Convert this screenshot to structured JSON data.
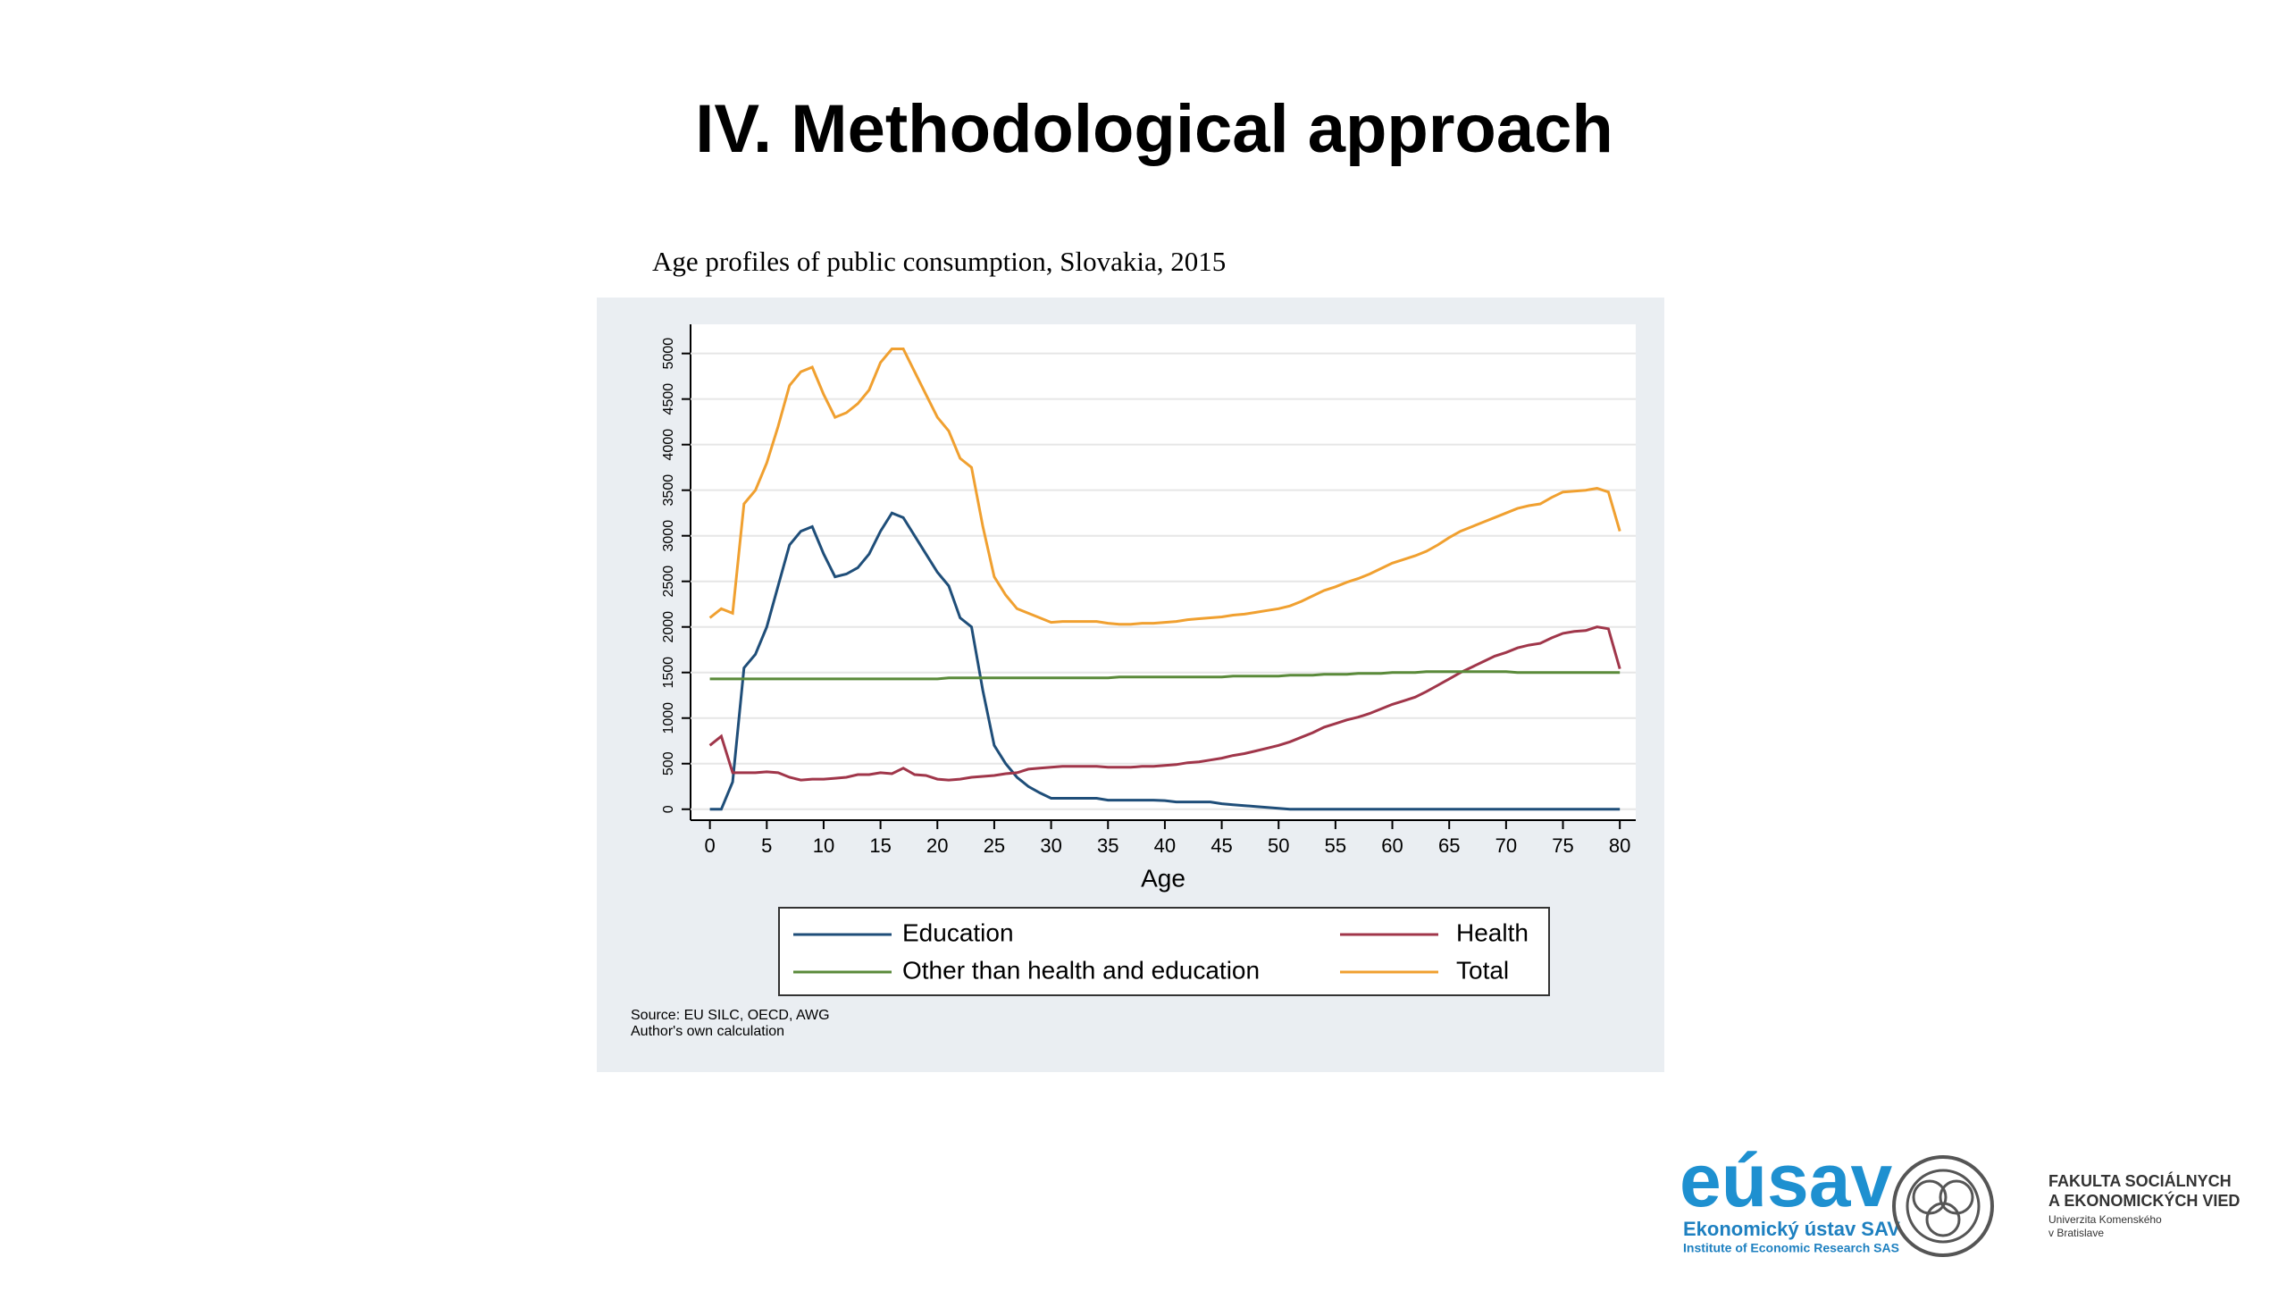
{
  "header": {
    "title": "IV. Methodological approach"
  },
  "chart_data": {
    "type": "line",
    "title": "Age profiles of public consumption, Slovakia, 2015",
    "x_label": "Age",
    "x": [
      0,
      1,
      2,
      3,
      4,
      5,
      6,
      7,
      8,
      9,
      10,
      11,
      12,
      13,
      14,
      15,
      16,
      17,
      18,
      19,
      20,
      21,
      22,
      23,
      24,
      25,
      26,
      27,
      28,
      29,
      30,
      31,
      32,
      33,
      34,
      35,
      36,
      37,
      38,
      39,
      40,
      41,
      42,
      43,
      44,
      45,
      46,
      47,
      48,
      49,
      50,
      51,
      52,
      53,
      54,
      55,
      56,
      57,
      58,
      59,
      60,
      61,
      62,
      63,
      64,
      65,
      66,
      67,
      68,
      69,
      70,
      71,
      72,
      73,
      74,
      75,
      76,
      77,
      78,
      79,
      80
    ],
    "xlim": [
      -1.7,
      81.4
    ],
    "xticks": [
      0,
      5,
      10,
      15,
      20,
      25,
      30,
      35,
      40,
      45,
      50,
      55,
      60,
      65,
      70,
      75,
      80
    ],
    "ylim": [
      -120,
      5320
    ],
    "yticks": [
      0,
      500,
      1000,
      1500,
      2000,
      2500,
      3000,
      3500,
      4000,
      4500,
      5000
    ],
    "grid": true,
    "series": [
      {
        "name": "Education",
        "color": "#1f4e79",
        "values": [
          0,
          0,
          300,
          1550,
          1700,
          2000,
          2450,
          2900,
          3050,
          3100,
          2800,
          2550,
          2580,
          2650,
          2800,
          3050,
          3250,
          3200,
          3000,
          2800,
          2600,
          2450,
          2100,
          2000,
          1300,
          700,
          500,
          350,
          250,
          180,
          120,
          120,
          120,
          120,
          120,
          100,
          100,
          100,
          100,
          100,
          95,
          80,
          80,
          80,
          80,
          60,
          50,
          40,
          30,
          20,
          10,
          0,
          0,
          0,
          0,
          0,
          0,
          0,
          0,
          0,
          0,
          0,
          0,
          0,
          0,
          0,
          0,
          0,
          0,
          0,
          0,
          0,
          0,
          0,
          0,
          0,
          0,
          0,
          0,
          0,
          0
        ]
      },
      {
        "name": "Health",
        "color": "#a0364a",
        "values": [
          700,
          800,
          400,
          400,
          400,
          410,
          400,
          350,
          320,
          330,
          330,
          340,
          350,
          380,
          380,
          400,
          390,
          450,
          380,
          370,
          330,
          320,
          330,
          350,
          360,
          370,
          390,
          400,
          440,
          450,
          460,
          470,
          470,
          470,
          470,
          460,
          460,
          460,
          470,
          470,
          480,
          490,
          510,
          520,
          540,
          560,
          590,
          610,
          640,
          670,
          700,
          740,
          790,
          840,
          900,
          940,
          980,
          1010,
          1050,
          1100,
          1150,
          1190,
          1230,
          1290,
          1360,
          1430,
          1500,
          1560,
          1620,
          1680,
          1720,
          1770,
          1800,
          1820,
          1880,
          1930,
          1950,
          1960,
          2000,
          1980,
          1540
        ]
      },
      {
        "name": "Other than health and education",
        "color": "#5a8a3a",
        "values": [
          1430,
          1430,
          1430,
          1430,
          1430,
          1430,
          1430,
          1430,
          1430,
          1430,
          1430,
          1430,
          1430,
          1430,
          1430,
          1430,
          1430,
          1430,
          1430,
          1430,
          1430,
          1440,
          1440,
          1440,
          1440,
          1440,
          1440,
          1440,
          1440,
          1440,
          1440,
          1440,
          1440,
          1440,
          1440,
          1440,
          1450,
          1450,
          1450,
          1450,
          1450,
          1450,
          1450,
          1450,
          1450,
          1450,
          1460,
          1460,
          1460,
          1460,
          1460,
          1470,
          1470,
          1470,
          1480,
          1480,
          1480,
          1490,
          1490,
          1490,
          1500,
          1500,
          1500,
          1510,
          1510,
          1510,
          1510,
          1510,
          1510,
          1510,
          1510,
          1500,
          1500,
          1500,
          1500,
          1500,
          1500,
          1500,
          1500,
          1500,
          1500
        ]
      },
      {
        "name": "Total",
        "color": "#f0a030",
        "values": [
          2100,
          2200,
          2150,
          3350,
          3500,
          3800,
          4200,
          4650,
          4800,
          4850,
          4550,
          4300,
          4350,
          4450,
          4600,
          4900,
          5050,
          5050,
          4800,
          4550,
          4300,
          4150,
          3850,
          3750,
          3100,
          2550,
          2350,
          2200,
          2150,
          2100,
          2050,
          2060,
          2060,
          2060,
          2060,
          2040,
          2030,
          2030,
          2040,
          2040,
          2050,
          2060,
          2080,
          2090,
          2100,
          2110,
          2130,
          2140,
          2160,
          2180,
          2200,
          2230,
          2280,
          2340,
          2400,
          2440,
          2490,
          2530,
          2580,
          2640,
          2700,
          2740,
          2780,
          2830,
          2900,
          2980,
          3050,
          3100,
          3150,
          3200,
          3250,
          3300,
          3330,
          3350,
          3420,
          3480,
          3490,
          3500,
          3520,
          3480,
          3050
        ]
      }
    ],
    "source": [
      "Source: EU SILC, OECD, AWG",
      "Author's own calculation"
    ]
  },
  "logos": {
    "eusav": "eúsav",
    "eusav_name": "Ekonomický ústav SAV",
    "eusav_en": "Institute of Economic Research SAS",
    "faculty": [
      "FAKULTA SOCIÁLNYCH",
      "A EKONOMICKÝCH VIED"
    ],
    "university": [
      "Univerzita Komenského",
      "v Bratislave"
    ]
  }
}
